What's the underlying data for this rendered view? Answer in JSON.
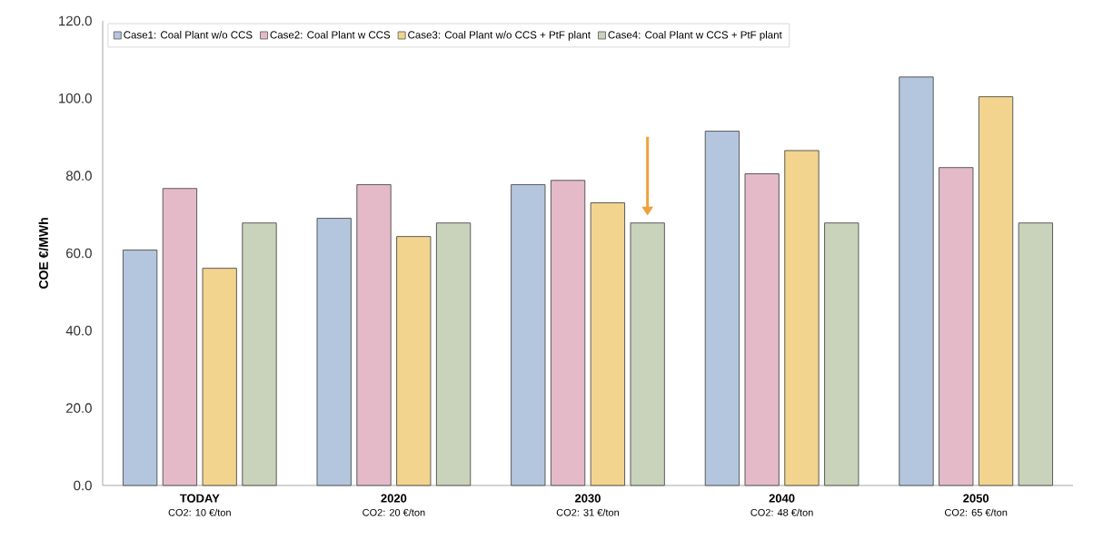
{
  "chart_data": {
    "type": "bar",
    "ylabel": "COE €/MWh",
    "categories": [
      "TODAY",
      "2020",
      "2030",
      "2040",
      "2050"
    ],
    "annotations": [
      "CO2: 10 €/ton",
      "CO2: 20 €/ton",
      "CO2: 31 €/ton",
      "CO2: 48 €/ton",
      "CO2: 65 €/ton"
    ],
    "series": [
      {
        "name": "Case1: Coal Plant w/o CCS",
        "color": "#b4c6dd",
        "values": [
          60.8,
          69.0,
          77.7,
          91.5,
          105.5
        ]
      },
      {
        "name": "Case2: Coal Plant w CCS",
        "color": "#e4bac9",
        "values": [
          76.7,
          77.7,
          78.8,
          80.5,
          82.1
        ]
      },
      {
        "name": "Case3: Coal Plant w/o CCS + PtF plant",
        "color": "#f2d48e",
        "values": [
          56.1,
          64.3,
          73.0,
          86.5,
          100.4
        ]
      },
      {
        "name": "Case4: Coal Plant w CCS + PtF plant",
        "color": "#c9d3bb",
        "values": [
          67.8,
          67.8,
          67.8,
          67.8,
          67.8
        ]
      }
    ],
    "ylim": [
      0,
      120
    ],
    "yticks": [
      {
        "value": 0,
        "label": "0.0"
      },
      {
        "value": 20,
        "label": "20.0"
      },
      {
        "value": 40,
        "label": "40.0"
      },
      {
        "value": 60,
        "label": "60.0"
      },
      {
        "value": 80,
        "label": "80.0"
      },
      {
        "value": 100,
        "label": "100.0"
      },
      {
        "value": 120,
        "label": "120.0"
      }
    ],
    "legend": "top"
  }
}
